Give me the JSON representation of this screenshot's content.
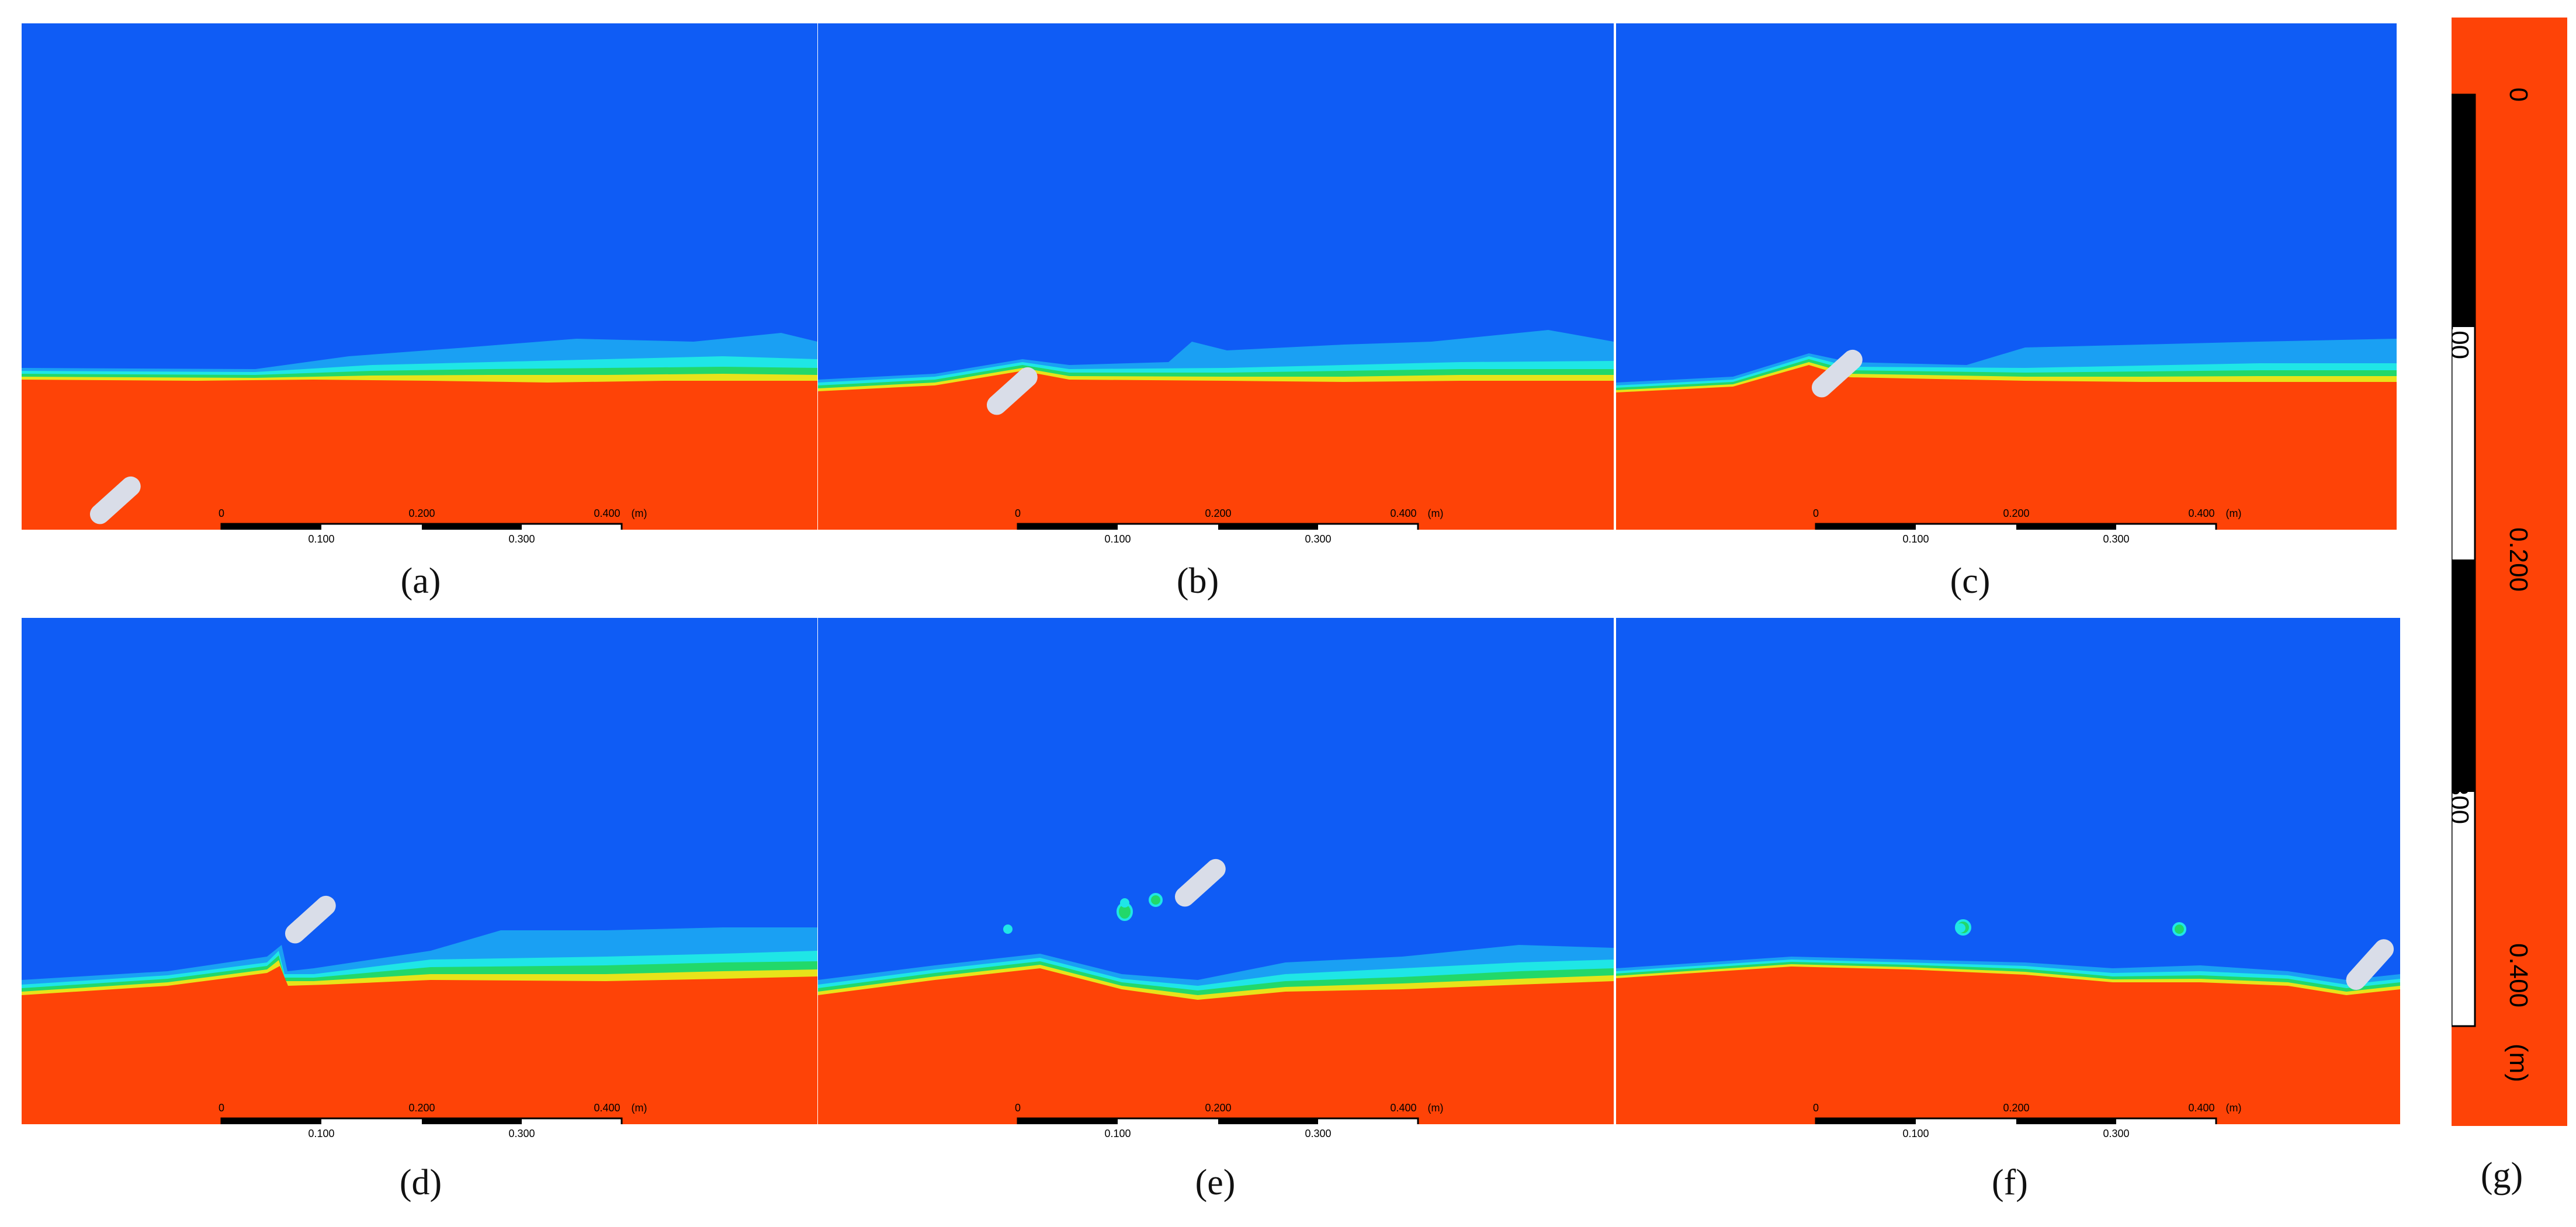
{
  "colors": {
    "air": "#0f5cf5",
    "water": "#fe4307",
    "interface_cyan": "#1fe6e6",
    "interface_green": "#22d86a",
    "interface_yellow": "#e8e31a",
    "lightblue": "#1aa0f3",
    "body": "#d9dde8"
  },
  "scalebar": {
    "tick_top": [
      "0",
      "0.200",
      "0.400",
      "(m)"
    ],
    "tick_bottom": [
      "0.100",
      "0.300"
    ]
  },
  "panels": [
    {
      "id": "a",
      "caption": "(a)"
    },
    {
      "id": "b",
      "caption": "(b)"
    },
    {
      "id": "c",
      "caption": "(c)"
    },
    {
      "id": "d",
      "caption": "(d)"
    },
    {
      "id": "e",
      "caption": "(e)"
    },
    {
      "id": "f",
      "caption": "(f)"
    }
  ],
  "legend": {
    "caption": "(g)",
    "labels": [
      "0",
      "0.100",
      "0.200",
      "0.300",
      "0.400",
      "(m)"
    ]
  }
}
